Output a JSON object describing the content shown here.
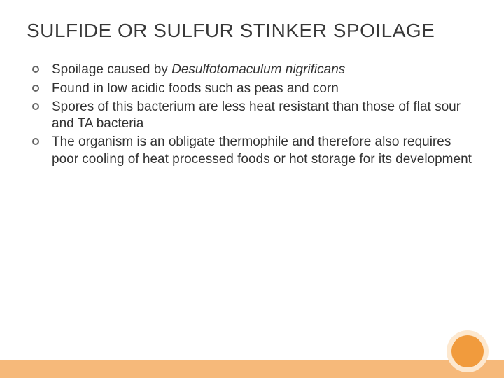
{
  "slide": {
    "title": "SULFIDE OR SULFUR STINKER SPOILAGE",
    "title_color": "#383838",
    "title_fontsize": 28,
    "body_fontsize": 19,
    "body_color": "#333333",
    "bullet_border_color": "#646464",
    "bullets": [
      {
        "prefix": "Spoilage caused by ",
        "italic": "Desulfotomaculum nigrificans",
        "suffix": ""
      },
      {
        "prefix": "Found in low acidic foods such as peas and corn",
        "italic": "",
        "suffix": ""
      },
      {
        "prefix": "Spores of this bacterium are less heat resistant than those of flat sour and TA bacteria",
        "italic": "",
        "suffix": ""
      },
      {
        "prefix": "The organism is an obligate thermophile and therefore also requires poor cooling of heat processed foods  or hot storage for its development",
        "italic": "",
        "suffix": ""
      }
    ]
  },
  "decor": {
    "bar_color": "#f6b97a",
    "outer_circle_color": "#fde8cf",
    "inner_circle_color": "#f19b3d",
    "background": "#ffffff"
  }
}
